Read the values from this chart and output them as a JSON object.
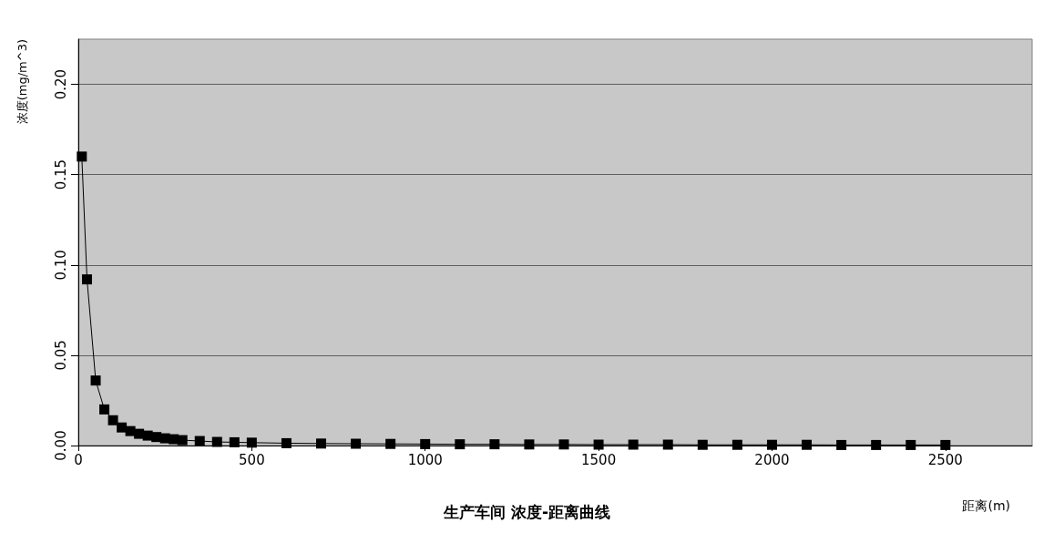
{
  "chart_data": {
    "type": "line",
    "title": "生产车间 浓度-距离曲线",
    "xlabel": "距离(m)",
    "ylabel": "浓度(mg/m^3)",
    "x": [
      10,
      25,
      50,
      75,
      100,
      125,
      150,
      175,
      200,
      225,
      250,
      275,
      300,
      350,
      400,
      450,
      500,
      600,
      700,
      800,
      900,
      1000,
      1100,
      1200,
      1300,
      1400,
      1500,
      1600,
      1700,
      1800,
      1900,
      2000,
      2100,
      2200,
      2300,
      2400,
      2500
    ],
    "series": [
      {
        "color": "#000000",
        "values": [
          0.16,
          0.092,
          0.036,
          0.02,
          0.014,
          0.01,
          0.008,
          0.0065,
          0.0055,
          0.0047,
          0.004,
          0.0035,
          0.003,
          0.0025,
          0.002,
          0.0018,
          0.0016,
          0.0013,
          0.0011,
          0.001,
          0.0009,
          0.0008,
          0.0007,
          0.0007,
          0.0006,
          0.0006,
          0.0005,
          0.0005,
          0.0005,
          0.0004,
          0.0004,
          0.0004,
          0.0004,
          0.0003,
          0.0003,
          0.0003,
          0.0003
        ]
      }
    ],
    "xlim": [
      0,
      2750
    ],
    "xticks": [
      0,
      500,
      1000,
      1500,
      2000,
      2500
    ],
    "ylim": [
      0,
      0.225
    ],
    "yticks": [
      {
        "value": 0,
        "label": "0.00"
      },
      {
        "value": 0.05,
        "label": "0.05"
      },
      {
        "value": 0.1,
        "label": "0.10"
      },
      {
        "value": 0.15,
        "label": "0.15"
      },
      {
        "value": 0.2,
        "label": "0.20"
      }
    ],
    "grid": "y",
    "marker": "square",
    "line_style": "solid"
  }
}
